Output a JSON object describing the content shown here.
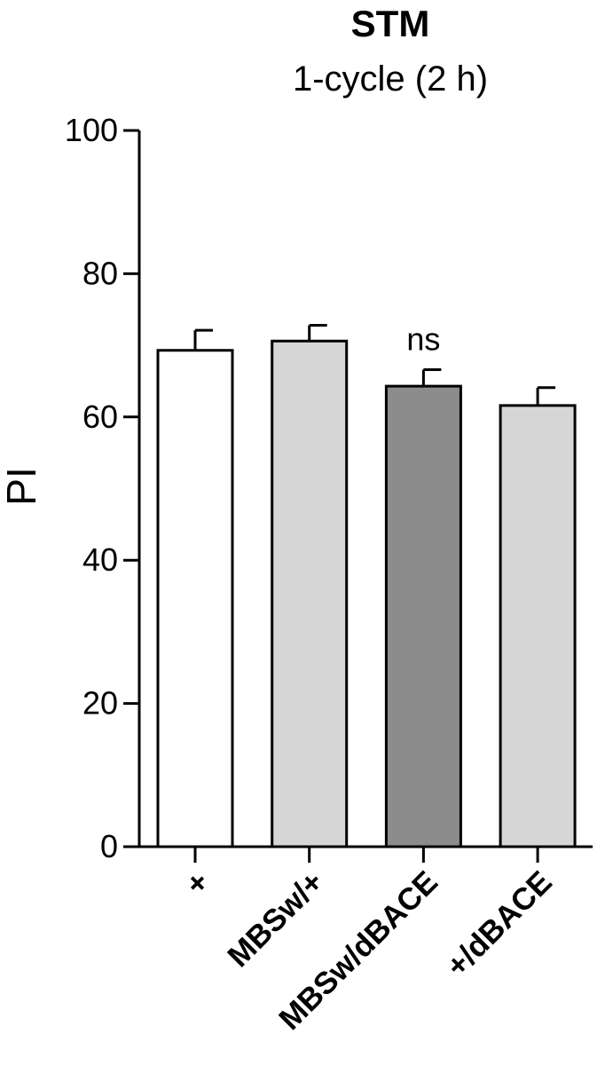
{
  "chart_data": {
    "type": "bar",
    "title": "STM",
    "subtitle": "1-cycle (2 h)",
    "xlabel": "",
    "ylabel": "PI",
    "ylim": [
      0,
      100
    ],
    "yticks": [
      0,
      20,
      40,
      60,
      80,
      100
    ],
    "grid": false,
    "categories": [
      "+",
      "MBSw/+",
      "MBSw/dBACE",
      "+/dBACE"
    ],
    "values": [
      69.3,
      70.6,
      64.3,
      61.6
    ],
    "errors": [
      2.8,
      2.2,
      2.3,
      2.5
    ],
    "colors": [
      "#ffffff",
      "#d6d6d6",
      "#8c8c8c",
      "#d6d6d6"
    ],
    "annotations": [
      {
        "category": "MBSw/dBACE",
        "text": "ns"
      }
    ]
  }
}
